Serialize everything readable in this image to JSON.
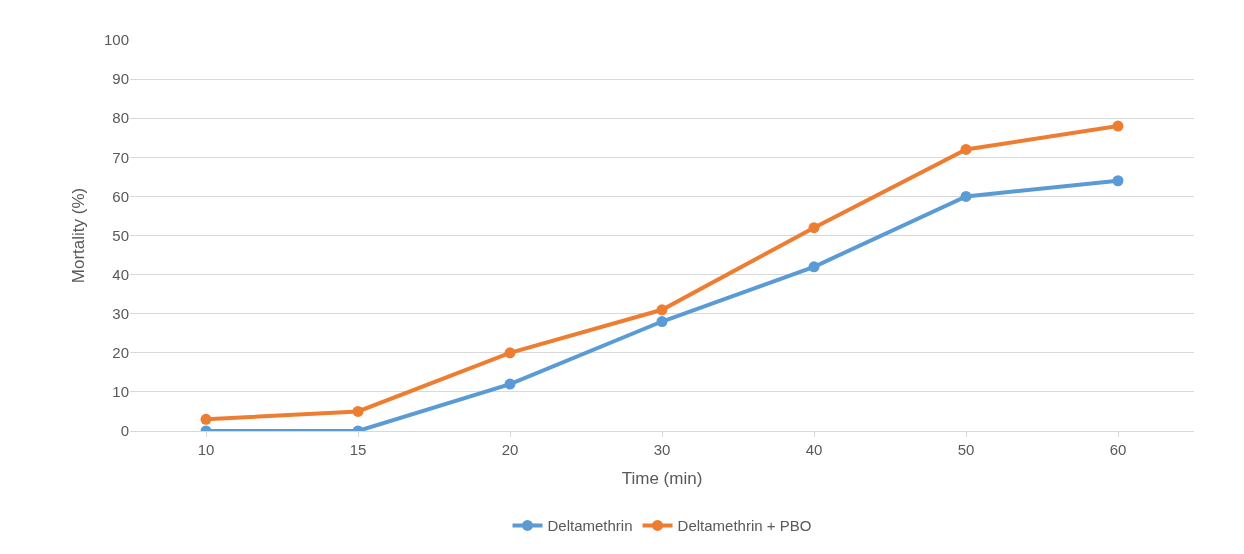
{
  "chart_data": {
    "type": "line",
    "xlabel": "Time (min)",
    "ylabel": "Mortality (%)",
    "categories": [
      "10",
      "15",
      "20",
      "30",
      "40",
      "50",
      "60"
    ],
    "series": [
      {
        "name": "Deltamethrin",
        "color": "#5b9bd5",
        "values": [
          0,
          0,
          12,
          28,
          42,
          60,
          64
        ]
      },
      {
        "name": "Deltamethrin + PBO",
        "color": "#ed7d31",
        "values": [
          3,
          5,
          20,
          31,
          52,
          72,
          78
        ]
      }
    ],
    "ylim": [
      0,
      100
    ],
    "yticks": [
      0,
      10,
      20,
      30,
      40,
      50,
      60,
      70,
      80,
      90,
      100
    ],
    "grid": "y",
    "legend": "bottom",
    "marker": "circle",
    "line_style": "solid"
  }
}
